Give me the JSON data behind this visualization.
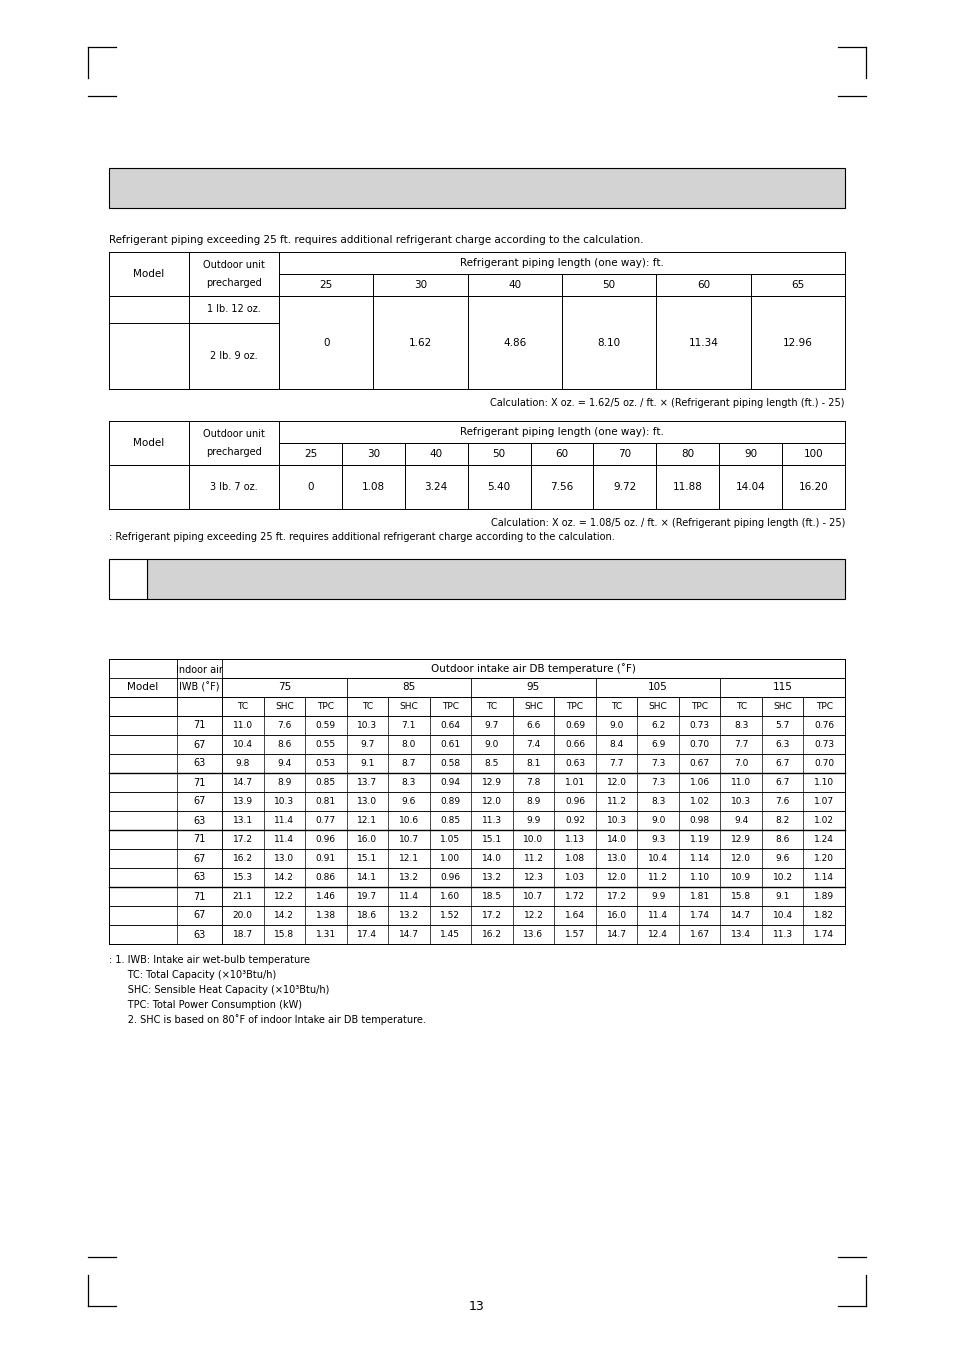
{
  "page_num": "13",
  "intro_text": "Refrigerant piping exceeding 25 ft. requires additional refrigerant charge according to the calculation.",
  "table1": {
    "piping_header": "Refrigerant piping length (one way): ft.",
    "sub_cols": [
      "25",
      "30",
      "40",
      "50",
      "60",
      "65"
    ],
    "row1_precharge": "1 lb. 12 oz.",
    "row2_precharge": "2 lb. 9 oz.",
    "values": [
      "0",
      "1.62",
      "4.86",
      "8.10",
      "11.34",
      "12.96"
    ],
    "calc": "Calculation: X oz. = 1.62/5 oz. / ft. × (Refrigerant piping length (ft.) - 25)"
  },
  "table2": {
    "piping_header": "Refrigerant piping length (one way): ft.",
    "sub_cols": [
      "25",
      "30",
      "40",
      "50",
      "60",
      "70",
      "80",
      "90",
      "100"
    ],
    "row1_precharge": "3 lb. 7 oz.",
    "values": [
      "0",
      "1.08",
      "3.24",
      "5.40",
      "7.56",
      "9.72",
      "11.88",
      "14.04",
      "16.20"
    ],
    "calc": "Calculation: X oz. = 1.08/5 oz. / ft. × (Refrigerant piping length (ft.) - 25)",
    "note": ": Refrigerant piping exceeding 25 ft. requires additional refrigerant charge according to the calculation."
  },
  "table3": {
    "outdoor_temps": [
      "75",
      "85",
      "95",
      "105",
      "115"
    ],
    "rows": [
      [
        "71",
        "11.0",
        "7.6",
        "0.59",
        "10.3",
        "7.1",
        "0.64",
        "9.7",
        "6.6",
        "0.69",
        "9.0",
        "6.2",
        "0.73",
        "8.3",
        "5.7",
        "0.76"
      ],
      [
        "67",
        "10.4",
        "8.6",
        "0.55",
        "9.7",
        "8.0",
        "0.61",
        "9.0",
        "7.4",
        "0.66",
        "8.4",
        "6.9",
        "0.70",
        "7.7",
        "6.3",
        "0.73"
      ],
      [
        "63",
        "9.8",
        "9.4",
        "0.53",
        "9.1",
        "8.7",
        "0.58",
        "8.5",
        "8.1",
        "0.63",
        "7.7",
        "7.3",
        "0.67",
        "7.0",
        "6.7",
        "0.70"
      ],
      [
        "71",
        "14.7",
        "8.9",
        "0.85",
        "13.7",
        "8.3",
        "0.94",
        "12.9",
        "7.8",
        "1.01",
        "12.0",
        "7.3",
        "1.06",
        "11.0",
        "6.7",
        "1.10"
      ],
      [
        "67",
        "13.9",
        "10.3",
        "0.81",
        "13.0",
        "9.6",
        "0.89",
        "12.0",
        "8.9",
        "0.96",
        "11.2",
        "8.3",
        "1.02",
        "10.3",
        "7.6",
        "1.07"
      ],
      [
        "63",
        "13.1",
        "11.4",
        "0.77",
        "12.1",
        "10.6",
        "0.85",
        "11.3",
        "9.9",
        "0.92",
        "10.3",
        "9.0",
        "0.98",
        "9.4",
        "8.2",
        "1.02"
      ],
      [
        "71",
        "17.2",
        "11.4",
        "0.96",
        "16.0",
        "10.7",
        "1.05",
        "15.1",
        "10.0",
        "1.13",
        "14.0",
        "9.3",
        "1.19",
        "12.9",
        "8.6",
        "1.24"
      ],
      [
        "67",
        "16.2",
        "13.0",
        "0.91",
        "15.1",
        "12.1",
        "1.00",
        "14.0",
        "11.2",
        "1.08",
        "13.0",
        "10.4",
        "1.14",
        "12.0",
        "9.6",
        "1.20"
      ],
      [
        "63",
        "15.3",
        "14.2",
        "0.86",
        "14.1",
        "13.2",
        "0.96",
        "13.2",
        "12.3",
        "1.03",
        "12.0",
        "11.2",
        "1.10",
        "10.9",
        "10.2",
        "1.14"
      ],
      [
        "71",
        "21.1",
        "12.2",
        "1.46",
        "19.7",
        "11.4",
        "1.60",
        "18.5",
        "10.7",
        "1.72",
        "17.2",
        "9.9",
        "1.81",
        "15.8",
        "9.1",
        "1.89"
      ],
      [
        "67",
        "20.0",
        "14.2",
        "1.38",
        "18.6",
        "13.2",
        "1.52",
        "17.2",
        "12.2",
        "1.64",
        "16.0",
        "11.4",
        "1.74",
        "14.7",
        "10.4",
        "1.82"
      ],
      [
        "63",
        "18.7",
        "15.8",
        "1.31",
        "17.4",
        "14.7",
        "1.45",
        "16.2",
        "13.6",
        "1.57",
        "14.7",
        "12.4",
        "1.67",
        "13.4",
        "11.3",
        "1.74"
      ]
    ],
    "notes": [
      ": 1. IWB: Intake air wet-bulb temperature",
      "      TC: Total Capacity (×10³Btu/h)",
      "      SHC: Sensible Heat Capacity (×10³Btu/h)",
      "      TPC: Total Power Consumption (kW)",
      "      2. SHC is based on 80˚F of indoor Intake air DB temperature."
    ]
  }
}
